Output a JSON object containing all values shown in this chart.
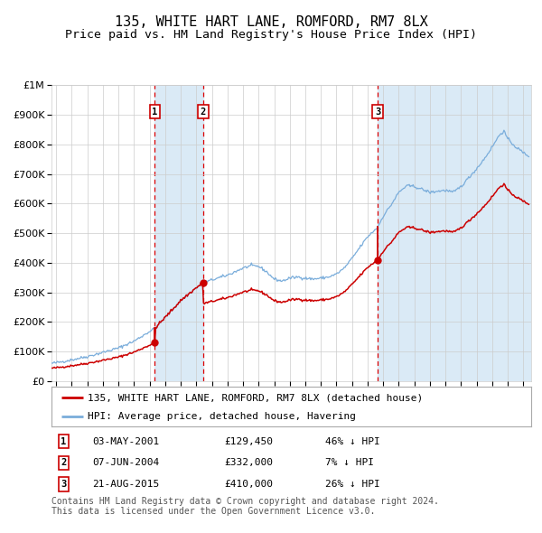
{
  "title": "135, WHITE HART LANE, ROMFORD, RM7 8LX",
  "subtitle": "Price paid vs. HM Land Registry's House Price Index (HPI)",
  "ylim": [
    0,
    1000000
  ],
  "yticks": [
    0,
    100000,
    200000,
    300000,
    400000,
    500000,
    600000,
    700000,
    800000,
    900000,
    1000000
  ],
  "ytick_labels": [
    "£0",
    "£100K",
    "£200K",
    "£300K",
    "£400K",
    "£500K",
    "£600K",
    "£700K",
    "£800K",
    "£900K",
    "£1M"
  ],
  "xlim_start": 1994.7,
  "xlim_end": 2025.5,
  "transaction_dates": [
    2001.34,
    2004.44,
    2015.64
  ],
  "transaction_prices": [
    129450,
    332000,
    410000
  ],
  "transaction_labels": [
    "1",
    "2",
    "3"
  ],
  "sale_info": [
    {
      "num": "1",
      "date": "03-MAY-2001",
      "price": "£129,450",
      "hpi": "46% ↓ HPI"
    },
    {
      "num": "2",
      "date": "07-JUN-2004",
      "price": "£332,000",
      "hpi": "7% ↓ HPI"
    },
    {
      "num": "3",
      "date": "21-AUG-2015",
      "price": "£410,000",
      "hpi": "26% ↓ HPI"
    }
  ],
  "hpi_line_color": "#7aaddb",
  "price_line_color": "#cc0000",
  "dashed_line_color": "#dd0000",
  "shading_color": "#daeaf6",
  "background_color": "#ffffff",
  "grid_color": "#cccccc",
  "legend_label_price": "135, WHITE HART LANE, ROMFORD, RM7 8LX (detached house)",
  "legend_label_hpi": "HPI: Average price, detached house, Havering",
  "footer_text": "Contains HM Land Registry data © Crown copyright and database right 2024.\nThis data is licensed under the Open Government Licence v3.0.",
  "title_fontsize": 11,
  "subtitle_fontsize": 9.5,
  "tick_fontsize": 8,
  "legend_fontsize": 8,
  "footer_fontsize": 7
}
